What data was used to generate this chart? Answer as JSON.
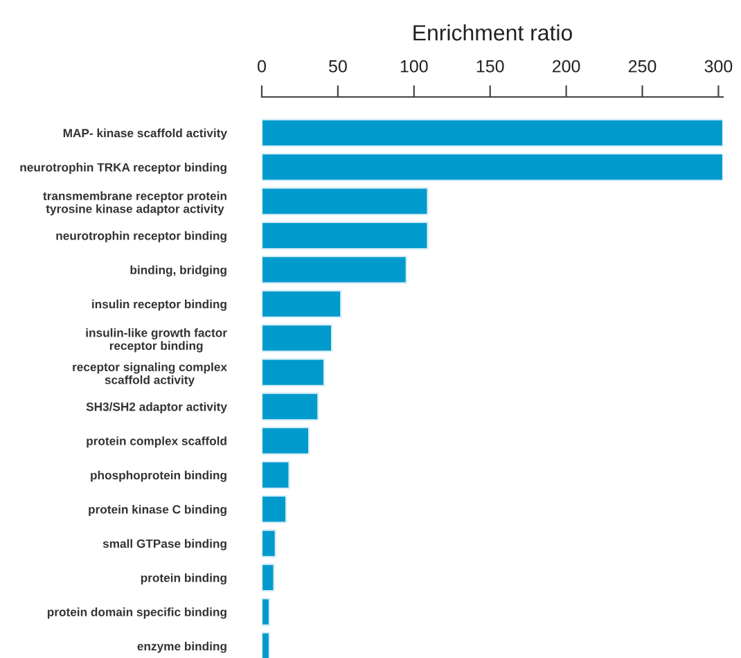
{
  "chart_data": {
    "type": "bar",
    "orientation": "horizontal",
    "xlabel": "Enrichment ratio",
    "categories": [
      "MAP- kinase scaffold activity",
      "neurotrophin TRKA receptor binding",
      "transmembrane receptor protein\ntyrosine kinase adaptor activity",
      "neurotrophin receptor binding",
      "binding, bridging",
      "insulin receptor binding",
      "insulin-like growth factor\nreceptor binding",
      "receptor signaling complex\nscaffold activity",
      "SH3/SH2 adaptor activity",
      "protein complex scaffold",
      "phosphoprotein binding",
      "protein kinase C binding",
      "small GTPase binding",
      "protein binding",
      "protein domain specific binding",
      "enzyme binding"
    ],
    "values": [
      303,
      303,
      109,
      109,
      95,
      52,
      46,
      41,
      37,
      31,
      18,
      16,
      9,
      8,
      5,
      5
    ],
    "color": "#009acd",
    "xlim": [
      0,
      303
    ],
    "xticks": [
      0,
      50,
      100,
      150,
      200,
      250,
      300
    ],
    "grid": false,
    "legend": false
  }
}
